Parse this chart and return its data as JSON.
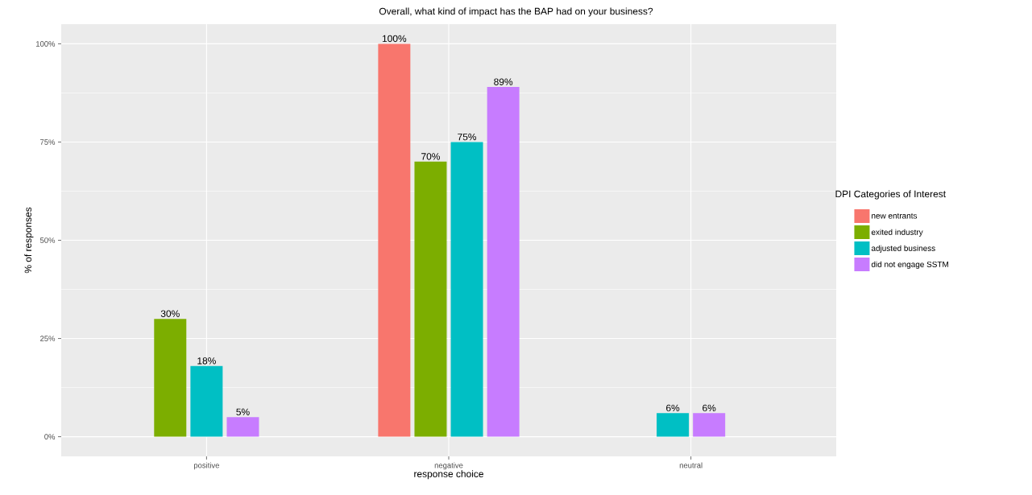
{
  "chart_data": {
    "type": "bar",
    "title": "Overall, what kind of impact has the BAP had on your business?",
    "xlabel": "response choice",
    "ylabel": "% of responses",
    "legend_title": "DPI Categories of Interest",
    "categories": [
      "positive",
      "negative",
      "neutral"
    ],
    "series": [
      {
        "name": "new entrants",
        "color": "#f8766d",
        "values": [
          null,
          100,
          null
        ],
        "value_labels": [
          null,
          "100%",
          null
        ]
      },
      {
        "name": "exited industry",
        "color": "#7cae00",
        "values": [
          30,
          70,
          null
        ],
        "value_labels": [
          "30%",
          "70%",
          null
        ]
      },
      {
        "name": "adjusted business",
        "color": "#00bfc4",
        "values": [
          18,
          75,
          6
        ],
        "value_labels": [
          "18%",
          "75%",
          "6%"
        ]
      },
      {
        "name": "did not engage SSTM",
        "color": "#c77cff",
        "values": [
          5,
          89,
          6
        ],
        "value_labels": [
          "5%",
          "89%",
          "6%"
        ]
      }
    ],
    "ylim": [
      -5,
      105
    ],
    "yticks": [
      {
        "value": 0,
        "label": "0%"
      },
      {
        "value": 25,
        "label": "25%"
      },
      {
        "value": 50,
        "label": "50%"
      },
      {
        "value": 75,
        "label": "75%"
      },
      {
        "value": 100,
        "label": "100%"
      }
    ],
    "grid": true,
    "legend": "right"
  }
}
